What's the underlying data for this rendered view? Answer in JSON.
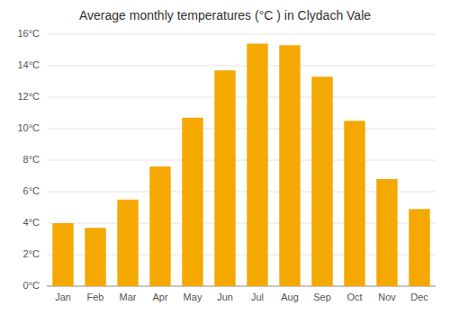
{
  "chart_data": {
    "type": "bar",
    "title": "Average monthly temperatures (°C ) in Clydach Vale",
    "categories": [
      "Jan",
      "Feb",
      "Mar",
      "Apr",
      "May",
      "Jun",
      "Jul",
      "Aug",
      "Sep",
      "Oct",
      "Nov",
      "Dec"
    ],
    "values": [
      4.0,
      3.7,
      5.5,
      7.6,
      10.7,
      13.7,
      15.4,
      15.3,
      13.3,
      10.5,
      6.8,
      4.9
    ],
    "color": "#F5A800",
    "ylim": [
      0,
      16
    ],
    "yticks": [
      {
        "value": 0,
        "label": "0°C"
      },
      {
        "value": 2,
        "label": "2°C"
      },
      {
        "value": 4,
        "label": "4°C"
      },
      {
        "value": 6,
        "label": "6°C"
      },
      {
        "value": 8,
        "label": "8°C"
      },
      {
        "value": 10,
        "label": "10°C"
      },
      {
        "value": 12,
        "label": "12°C"
      },
      {
        "value": 14,
        "label": "14°C"
      },
      {
        "value": 16,
        "label": "16°C"
      }
    ],
    "grid": true
  }
}
